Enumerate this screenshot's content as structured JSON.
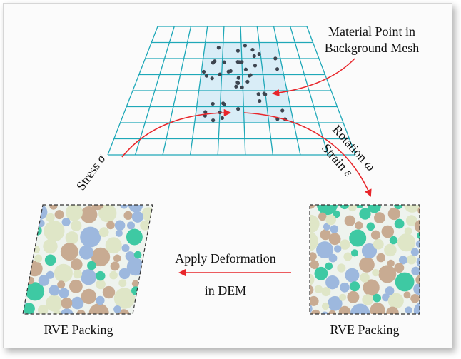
{
  "labels": {
    "material_point_line1": "Material Point in",
    "material_point_line2": "Background Mesh",
    "stress": "Stress ",
    "stress_symbol": "σ",
    "rotation": "Rotation ",
    "rotation_symbol": "ω",
    "strain": "Strain ",
    "strain_symbol": "ε",
    "apply_line1": "Apply Deformation",
    "apply_line2": "in DEM",
    "rve_left": "RVE Packing",
    "rve_right": "RVE Packing"
  },
  "colors": {
    "mesh_line": "#1fa8b8",
    "mesh_highlight": "#d9edf7",
    "material_points": "#3d4550",
    "arrow": "#e8262b",
    "packing_background": "#eef3ee",
    "particle_teal": "#3ec9a3",
    "particle_blue": "#9db8de",
    "particle_tan": "#c8ab92",
    "particle_cream": "#dfe6c7"
  }
}
